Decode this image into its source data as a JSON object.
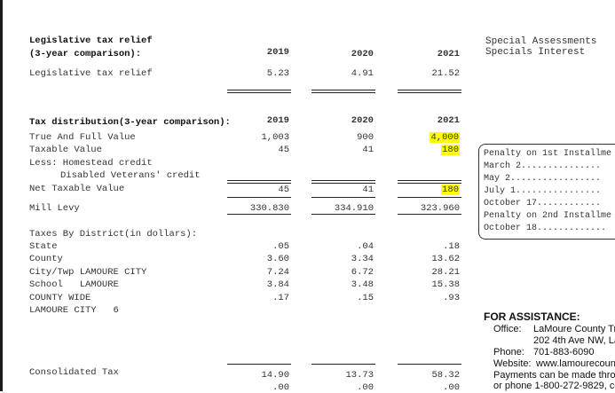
{
  "relief": {
    "title": "Legislative tax relief",
    "subtitle": "(3-year comparison):",
    "years": [
      "2019",
      "2020",
      "2021"
    ],
    "row_label": "Legislative tax relief",
    "values": [
      "5.23",
      "4.91",
      "21.52"
    ]
  },
  "specials": {
    "line1": "Special Assessments",
    "line2": "Specials Interest"
  },
  "distribution": {
    "title": "Tax distribution(3-year comparison):",
    "years": [
      "2019",
      "2020",
      "2021"
    ],
    "rows": [
      {
        "label": "True And Full Value",
        "values": [
          "1,003",
          "900",
          "4,000"
        ]
      },
      {
        "label": "Taxable Value",
        "values": [
          "45",
          "41",
          "180"
        ]
      },
      {
        "label": "Less: Homestead credit",
        "values": [
          "",
          "",
          ""
        ]
      },
      {
        "label": "Disabled Veterans' credit",
        "values": [
          "",
          "",
          ""
        ]
      },
      {
        "label": "Net Taxable Value",
        "values": [
          "45",
          "41",
          "180"
        ]
      },
      {
        "label": "Mill Levy",
        "values": [
          "330.830",
          "334.910",
          "323.960"
        ]
      }
    ],
    "highlight_color": "#ffff00"
  },
  "district": {
    "title": "Taxes By District(in dollars):",
    "rows": [
      {
        "label": "State",
        "values": [
          ".05",
          ".04",
          ".18"
        ]
      },
      {
        "label": "County",
        "values": [
          "3.60",
          "3.34",
          "13.62"
        ]
      },
      {
        "label": "City/Twp LAMOURE CITY",
        "values": [
          "7.24",
          "6.72",
          "28.21"
        ]
      },
      {
        "label": "School   LAMOURE",
        "values": [
          "3.84",
          "3.48",
          "15.38"
        ]
      },
      {
        "label": "COUNTY WIDE",
        "values": [
          ".17",
          ".15",
          ".93"
        ]
      },
      {
        "label": "LAMOURE CITY   6",
        "values": [
          "",
          "",
          ""
        ]
      }
    ]
  },
  "consolidated": {
    "label": "Consolidated Tax",
    "values": [
      "14.90",
      "13.73",
      "58.32"
    ],
    "sub_values": [
      ".00",
      ".00",
      ".00"
    ]
  },
  "penalty": {
    "lines": [
      "Penalty on 1st Installme",
      "March  2...............",
      "May  2.................",
      "July  1................",
      "October  17............",
      "Penalty on 2nd Installme",
      "October 18............."
    ]
  },
  "assistance": {
    "title": "FOR ASSISTANCE:",
    "office_label": "Office:",
    "office_line1": "LaMoure County Tr",
    "office_line2": "202 4th Ave NW, La",
    "phone_label": "Phone:",
    "phone": "701-883-6090",
    "website_label": "Website:",
    "website": "www.lamourecount",
    "payments_line1": "Payments can be made throu",
    "payments_line2": "or phone 1-800-272-9829, co"
  }
}
